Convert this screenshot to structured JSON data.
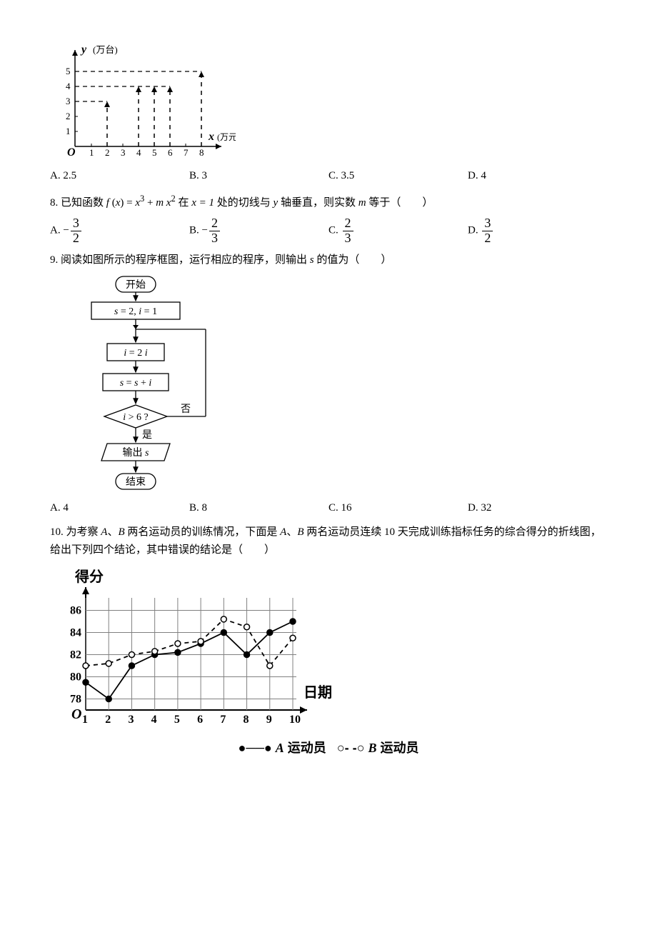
{
  "chart7": {
    "type": "bar-stem",
    "xlabel": "x (万元)",
    "ylabel": "y (万台)",
    "xticks": [
      1,
      2,
      3,
      4,
      5,
      6,
      7,
      8
    ],
    "yticks": [
      1,
      2,
      3,
      4,
      5
    ],
    "points": [
      {
        "x": 2,
        "y": 3
      },
      {
        "x": 4,
        "y": 4
      },
      {
        "x": 5,
        "y": 4
      },
      {
        "x": 6,
        "y": 4
      },
      {
        "x": 8,
        "y": 5
      }
    ],
    "axis_color": "#000000",
    "dash_color": "#000000",
    "label_font": "bold italic 16px Times New Roman"
  },
  "q7opts": {
    "A": "2.5",
    "B": "3",
    "C": "3.5",
    "D": "4"
  },
  "q8": {
    "text_pre": "8. 已知函数 ",
    "fx": "f (x) = x³ + mx²",
    "text_mid1": " 在 ",
    "at": "x = 1",
    "text_mid2": " 处的切线与 ",
    "yaxis": "y",
    "text_post": " 轴垂直，则实数 ",
    "mvar": "m",
    "text_end": " 等于（　　）"
  },
  "q8opts": {
    "A": {
      "sign": "−",
      "num": "3",
      "den": "2"
    },
    "B": {
      "sign": "−",
      "num": "2",
      "den": "3"
    },
    "C": {
      "sign": "",
      "num": "2",
      "den": "3"
    },
    "D": {
      "sign": "",
      "num": "3",
      "den": "2"
    }
  },
  "q9": {
    "text": "9. 阅读如图所示的程序框图，运行相应的程序，则输出 ",
    "svar": "s",
    "text2": " 的值为（　　）"
  },
  "flow": {
    "type": "flowchart",
    "nodes": {
      "start": "开始",
      "init": "s = 2,   i = 1",
      "step1": "i = 2 i",
      "step2": "s =  s + i",
      "cond": "i > 6 ?",
      "out": "输出 s",
      "end": "结束"
    },
    "edge_labels": {
      "yes": "是",
      "no": "否"
    },
    "border_color": "#000000",
    "text_fontsize": 15
  },
  "q9opts": {
    "A": "4",
    "B": "8",
    "C": "16",
    "D": "32"
  },
  "q10": {
    "text": "10. 为考察 ",
    "A": "A",
    "sep": "、",
    "B": "B",
    "text2": " 两名运动员的训练情况，下面是 ",
    "text3": " 两名运动员连续 10 天完成训练指标任务的综合得分的折线图，给出下列四个结论，其中错误的结论是（　　）"
  },
  "chart10": {
    "type": "line",
    "ylabel": "得分",
    "xlabel": "日期",
    "xticks": [
      1,
      2,
      3,
      4,
      5,
      6,
      7,
      8,
      9,
      10
    ],
    "yticks": [
      78,
      80,
      82,
      84,
      86
    ],
    "ylim": [
      77,
      87
    ],
    "seriesA": {
      "name": "A 运动员",
      "marker": "filled-circle",
      "dash": "solid",
      "color": "#000000",
      "data": [
        79.5,
        78,
        81,
        82,
        82.2,
        83,
        84,
        82,
        84,
        85
      ]
    },
    "seriesB": {
      "name": "B 运动员",
      "marker": "open-circle",
      "dash": "dashed",
      "color": "#000000",
      "data": [
        81,
        81.2,
        82,
        82.3,
        83,
        83.2,
        85.2,
        84.5,
        81,
        83.5
      ]
    },
    "grid_color": "#808080",
    "axis_color": "#000000",
    "label_fontsize": 20,
    "tick_fontsize": 16
  },
  "legend10": {
    "A_marker": "●─●",
    "A_label": "A 运动员",
    "B_marker": "○- -○",
    "B_label": "B 运动员"
  }
}
